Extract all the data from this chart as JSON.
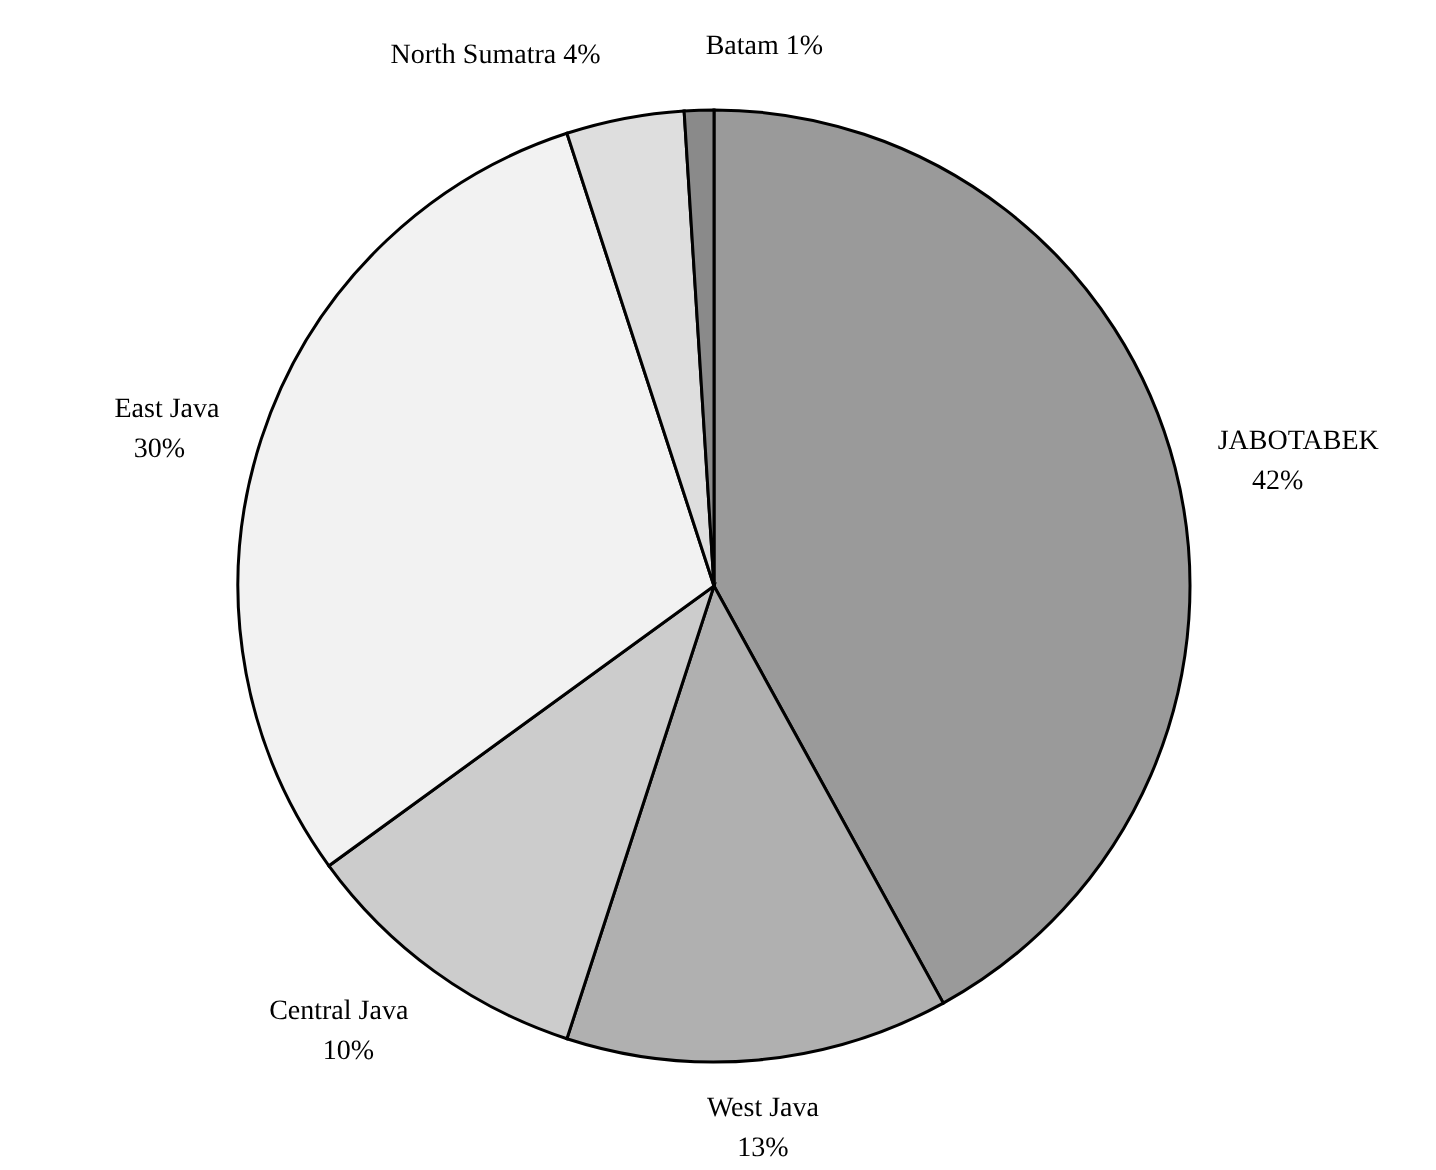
{
  "chart_data": {
    "type": "pie",
    "categories": [
      "JABOTABEK",
      "West Java",
      "Central Java",
      "East Java",
      "North Sumatra",
      "Batam"
    ],
    "values": [
      42,
      13,
      10,
      30,
      4,
      1
    ],
    "value_labels": [
      "42%",
      "13%",
      "10%",
      "30%",
      "4%",
      "1%"
    ],
    "colors": [
      "#9a9a9a",
      "#b0b0b0",
      "#cccccc",
      "#f2f2f2",
      "#dedede",
      "#8a8a8a"
    ]
  }
}
